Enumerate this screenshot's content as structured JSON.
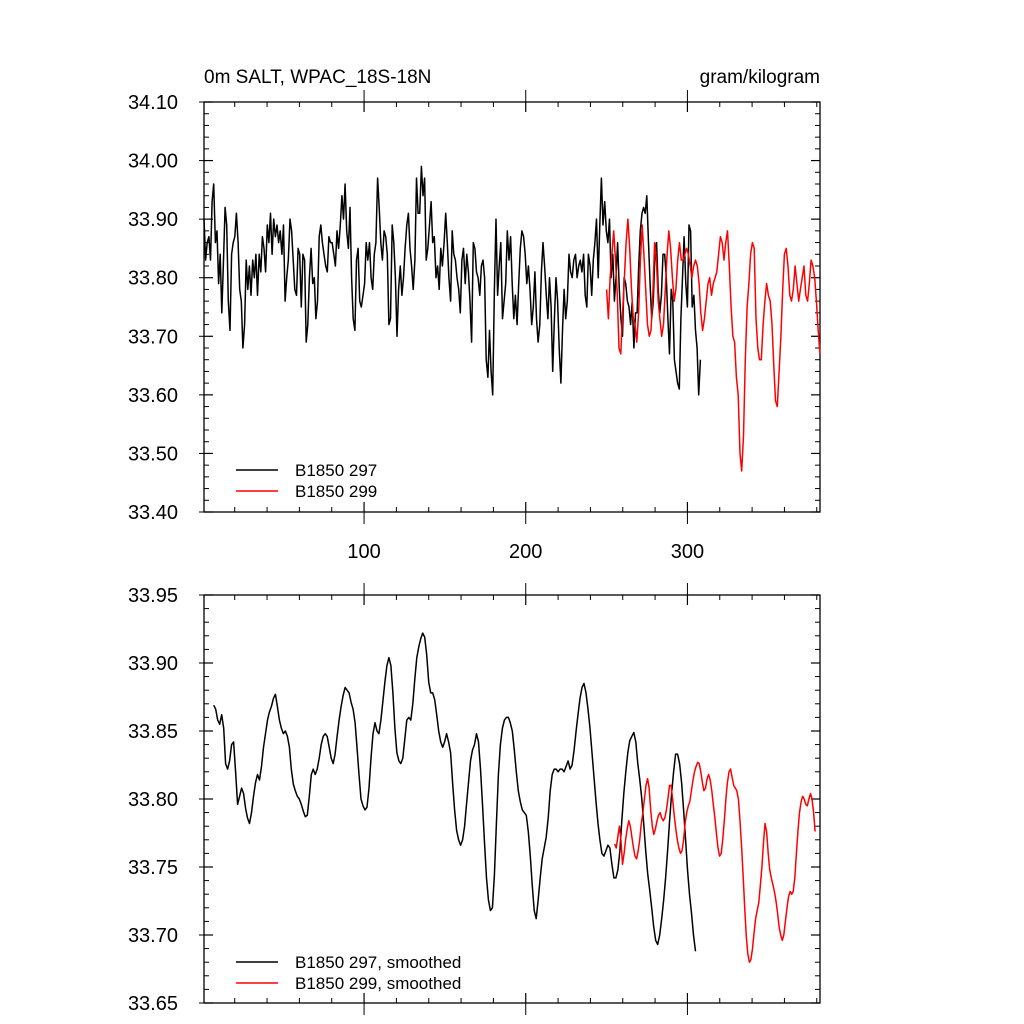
{
  "chart_data": [
    {
      "type": "line",
      "title": "0m SALT, WPAC_18S-18N",
      "units": "gram/kilogram",
      "xlim": [
        1,
        382
      ],
      "ylim": [
        33.4,
        34.1
      ],
      "yticks": [
        "34.10",
        "34.00",
        "33.90",
        "33.80",
        "33.70",
        "33.60",
        "33.50",
        "33.40"
      ],
      "xticks": [
        "100",
        "200",
        "300"
      ],
      "legend_position": "lower-left",
      "series": [
        {
          "name": "B1850 297",
          "color": "#000000",
          "x_start": 1,
          "values": [
            33.9,
            33.83,
            33.86,
            33.87,
            33.83,
            33.93,
            33.96,
            33.86,
            33.88,
            33.79,
            33.84,
            33.74,
            33.83,
            33.92,
            33.89,
            33.76,
            33.71,
            33.84,
            33.86,
            33.87,
            33.91,
            33.86,
            33.78,
            33.76,
            33.68,
            33.72,
            33.83,
            33.78,
            33.82,
            33.77,
            33.83,
            33.8,
            33.84,
            33.77,
            33.84,
            33.81,
            33.87,
            33.85,
            33.81,
            33.89,
            33.86,
            33.91,
            33.84,
            33.9,
            33.87,
            33.89,
            33.86,
            33.88,
            33.84,
            33.89,
            33.76,
            33.8,
            33.83,
            33.9,
            33.88,
            33.83,
            33.78,
            33.77,
            33.85,
            33.84,
            33.75,
            33.84,
            33.83,
            33.69,
            33.72,
            33.8,
            33.85,
            33.79,
            33.8,
            33.73,
            33.76,
            33.87,
            33.89,
            33.86,
            33.84,
            33.82,
            33.81,
            33.87,
            33.86,
            33.86,
            33.84,
            33.82,
            33.88,
            33.85,
            33.89,
            33.94,
            33.9,
            33.96,
            33.88,
            33.85,
            33.92,
            33.8,
            33.73,
            33.71,
            33.83,
            33.85,
            33.76,
            33.75,
            33.77,
            33.79,
            33.86,
            33.83,
            33.86,
            33.8,
            33.78,
            33.84,
            33.86,
            33.97,
            33.92,
            33.86,
            33.83,
            33.88,
            33.87,
            33.84,
            33.72,
            33.73,
            33.89,
            33.86,
            33.8,
            33.7,
            33.78,
            33.82,
            33.77,
            33.8,
            33.85,
            33.89,
            33.91,
            33.85,
            33.82,
            33.78,
            33.83,
            33.97,
            33.91,
            33.91,
            33.99,
            33.94,
            33.97,
            33.83,
            33.85,
            33.89,
            33.93,
            33.86,
            33.87,
            33.8,
            33.82,
            33.78,
            33.85,
            33.82,
            33.86,
            33.91,
            33.86,
            33.8,
            33.76,
            33.88,
            33.84,
            33.83,
            33.8,
            33.78,
            33.74,
            33.83,
            33.85,
            33.79,
            33.84,
            33.81,
            33.76,
            33.69,
            33.86,
            33.85,
            33.81,
            33.8,
            33.77,
            33.82,
            33.83,
            33.8,
            33.66,
            33.63,
            33.71,
            33.64,
            33.6,
            33.78,
            33.9,
            33.77,
            33.82,
            33.86,
            33.73,
            33.76,
            33.79,
            33.88,
            33.83,
            33.87,
            33.79,
            33.73,
            33.77,
            33.72,
            33.79,
            33.85,
            33.88,
            33.87,
            33.84,
            33.79,
            33.82,
            33.78,
            33.72,
            33.75,
            33.81,
            33.73,
            33.69,
            33.72,
            33.81,
            33.86,
            33.82,
            33.77,
            33.73,
            33.8,
            33.75,
            33.64,
            33.73,
            33.8,
            33.76,
            33.68,
            33.62,
            33.71,
            33.78,
            33.73,
            33.76,
            33.84,
            33.81,
            33.8,
            33.83,
            33.84,
            33.8,
            33.82,
            33.83,
            33.81,
            33.84,
            33.77,
            33.75,
            33.84,
            33.82,
            33.77,
            33.83,
            33.86,
            33.9,
            33.8,
            33.89,
            33.97,
            33.89,
            33.93,
            33.88,
            33.86,
            33.9,
            33.8,
            33.84,
            33.76,
            33.8,
            33.86,
            33.78,
            33.73,
            33.7,
            33.8,
            33.79,
            33.76,
            33.75,
            33.72,
            33.76,
            33.68,
            33.74,
            33.74,
            33.82,
            33.88,
            33.91,
            33.92,
            33.91,
            33.94,
            33.86,
            33.79,
            33.73,
            33.76,
            33.84,
            33.86,
            33.78,
            33.74,
            33.77,
            33.84,
            33.84,
            33.8,
            33.73,
            33.67,
            33.78,
            33.76,
            33.66,
            33.64,
            33.62,
            33.61,
            33.73,
            33.8,
            33.87,
            33.79,
            33.75,
            33.89,
            33.88,
            33.75,
            33.77,
            33.71,
            33.68,
            33.6,
            33.66
          ],
          "x_end": 308
        },
        {
          "name": "B1850 299",
          "color": "#ff0000",
          "x_start": 250,
          "values": [
            33.78,
            33.73,
            33.8,
            33.84,
            33.88,
            33.83,
            33.77,
            33.68,
            33.67,
            33.74,
            33.8,
            33.86,
            33.9,
            33.85,
            33.78,
            33.73,
            33.72,
            33.69,
            33.74,
            33.83,
            33.89,
            33.84,
            33.78,
            33.72,
            33.7,
            33.71,
            33.77,
            33.86,
            33.83,
            33.76,
            33.73,
            33.7,
            33.72,
            33.78,
            33.84,
            33.88,
            33.85,
            33.8,
            33.76,
            33.78,
            33.83,
            33.86,
            33.83,
            33.83,
            33.84,
            33.85,
            33.84,
            33.82,
            33.8,
            33.82,
            33.83,
            33.82,
            33.79,
            33.74,
            33.71,
            33.73,
            33.76,
            33.79,
            33.8,
            33.77,
            33.79,
            33.8,
            33.81,
            33.84,
            33.87,
            33.86,
            33.83,
            33.86,
            33.88,
            33.82,
            33.75,
            33.7,
            33.69,
            33.63,
            33.6,
            33.5,
            33.47,
            33.53,
            33.66,
            33.75,
            33.79,
            33.84,
            33.86,
            33.85,
            33.73,
            33.68,
            33.66,
            33.66,
            33.72,
            33.76,
            33.79,
            33.77,
            33.76,
            33.72,
            33.65,
            33.59,
            33.58,
            33.64,
            33.7,
            33.78,
            33.84,
            33.85,
            33.82,
            33.77,
            33.76,
            33.78,
            33.82,
            33.79,
            33.76,
            33.78,
            33.8,
            33.82,
            33.77,
            33.76,
            33.79,
            33.83,
            33.82,
            33.8,
            33.76,
            33.71,
            33.67
          ],
          "x_end": 382
        }
      ]
    },
    {
      "type": "line",
      "title": "",
      "xlim": [
        1,
        382
      ],
      "ylim": [
        33.65,
        33.95
      ],
      "yticks": [
        "33.95",
        "33.90",
        "33.85",
        "33.80",
        "33.75",
        "33.70",
        "33.65"
      ],
      "xticks": [],
      "legend_position": "lower-left",
      "series": [
        {
          "name": "B1850 297, smoothed",
          "color": "#000000",
          "x_start": 7,
          "values": [
            33.869,
            33.866,
            33.858,
            33.855,
            33.862,
            33.852,
            33.826,
            33.822,
            33.828,
            33.84,
            33.842,
            33.82,
            33.796,
            33.802,
            33.808,
            33.804,
            33.793,
            33.786,
            33.782,
            33.79,
            33.802,
            33.812,
            33.818,
            33.814,
            33.824,
            33.838,
            33.848,
            33.858,
            33.864,
            33.868,
            33.874,
            33.877,
            33.868,
            33.858,
            33.852,
            33.848,
            33.85,
            33.846,
            33.838,
            33.822,
            33.811,
            33.806,
            33.802,
            33.8,
            33.796,
            33.791,
            33.787,
            33.788,
            33.802,
            33.818,
            33.822,
            33.818,
            33.822,
            33.83,
            33.84,
            33.846,
            33.848,
            33.846,
            33.838,
            33.83,
            33.826,
            33.833,
            33.846,
            33.858,
            33.868,
            33.876,
            33.882,
            33.88,
            33.878,
            33.871,
            33.866,
            33.856,
            33.838,
            33.818,
            33.8,
            33.795,
            33.792,
            33.794,
            33.808,
            33.83,
            33.848,
            33.856,
            33.85,
            33.848,
            33.858,
            33.872,
            33.886,
            33.898,
            33.904,
            33.898,
            33.878,
            33.852,
            33.834,
            33.828,
            33.826,
            33.83,
            33.844,
            33.858,
            33.86,
            33.858,
            33.87,
            33.888,
            33.904,
            33.912,
            33.918,
            33.922,
            33.919,
            33.906,
            33.886,
            33.878,
            33.878,
            33.873,
            33.862,
            33.85,
            33.842,
            33.838,
            33.842,
            33.848,
            33.842,
            33.834,
            33.812,
            33.792,
            33.777,
            33.77,
            33.766,
            33.77,
            33.78,
            33.796,
            33.812,
            33.828,
            33.836,
            33.84,
            33.848,
            33.842,
            33.822,
            33.796,
            33.768,
            33.742,
            33.726,
            33.718,
            33.72,
            33.744,
            33.782,
            33.818,
            33.84,
            33.852,
            33.858,
            33.86,
            33.86,
            33.856,
            33.85,
            33.836,
            33.82,
            33.806,
            33.798,
            33.792,
            33.79,
            33.788,
            33.776,
            33.758,
            33.736,
            33.718,
            33.712,
            33.726,
            33.742,
            33.756,
            33.764,
            33.772,
            33.786,
            33.806,
            33.818,
            33.822,
            33.822,
            33.82,
            33.822,
            33.822,
            33.82,
            33.824,
            33.828,
            33.822,
            33.825,
            33.836,
            33.85,
            33.862,
            33.874,
            33.882,
            33.885,
            33.878,
            33.866,
            33.852,
            33.834,
            33.816,
            33.798,
            33.782,
            33.77,
            33.76,
            33.758,
            33.762,
            33.766,
            33.764,
            33.752,
            33.742,
            33.742,
            33.748,
            33.762,
            33.784,
            33.804,
            33.82,
            33.834,
            33.843,
            33.846,
            33.849,
            33.842,
            33.826,
            33.814,
            33.8,
            33.782,
            33.762,
            33.745,
            33.733,
            33.72,
            33.706,
            33.696,
            33.693,
            33.7,
            33.712,
            33.726,
            33.742,
            33.762,
            33.784,
            33.804,
            33.82,
            33.833,
            33.833,
            33.826,
            33.812,
            33.792,
            33.77,
            33.748,
            33.73,
            33.716,
            33.7,
            33.688
          ],
          "x_end": 305
        },
        {
          "name": "B1850 299, smoothed",
          "color": "#ff0000",
          "x_start": 255,
          "values": [
            33.767,
            33.764,
            33.772,
            33.78,
            33.77,
            33.752,
            33.76,
            33.77,
            33.778,
            33.784,
            33.78,
            33.772,
            33.764,
            33.758,
            33.756,
            33.762,
            33.77,
            33.782,
            33.79,
            33.8,
            33.81,
            33.815,
            33.808,
            33.792,
            33.78,
            33.774,
            33.778,
            33.784,
            33.788,
            33.79,
            33.786,
            33.784,
            33.786,
            33.792,
            33.8,
            33.81,
            33.81,
            33.8,
            33.788,
            33.778,
            33.77,
            33.764,
            33.76,
            33.762,
            33.77,
            33.782,
            33.79,
            33.795,
            33.798,
            33.806,
            33.814,
            33.82,
            33.824,
            33.827,
            33.826,
            33.82,
            33.812,
            33.806,
            33.808,
            33.815,
            33.818,
            33.814,
            33.806,
            33.796,
            33.786,
            33.774,
            33.764,
            33.758,
            33.76,
            33.77,
            33.784,
            33.8,
            33.812,
            33.82,
            33.822,
            33.816,
            33.81,
            33.808,
            33.806,
            33.8,
            33.784,
            33.766,
            33.744,
            33.72,
            33.7,
            33.686,
            33.68,
            33.682,
            33.69,
            33.702,
            33.712,
            33.718,
            33.724,
            33.736,
            33.75,
            33.768,
            33.782,
            33.776,
            33.76,
            33.748,
            33.742,
            33.737,
            33.732,
            33.725,
            33.716,
            33.706,
            33.7,
            33.696,
            33.7,
            33.71,
            33.72,
            33.728,
            33.732,
            33.73,
            33.732,
            33.742,
            33.76,
            33.776,
            33.79,
            33.798,
            33.802,
            33.8,
            33.796,
            33.795,
            33.8,
            33.804,
            33.8,
            33.79,
            33.776
          ],
          "x_end": 379
        }
      ]
    }
  ]
}
